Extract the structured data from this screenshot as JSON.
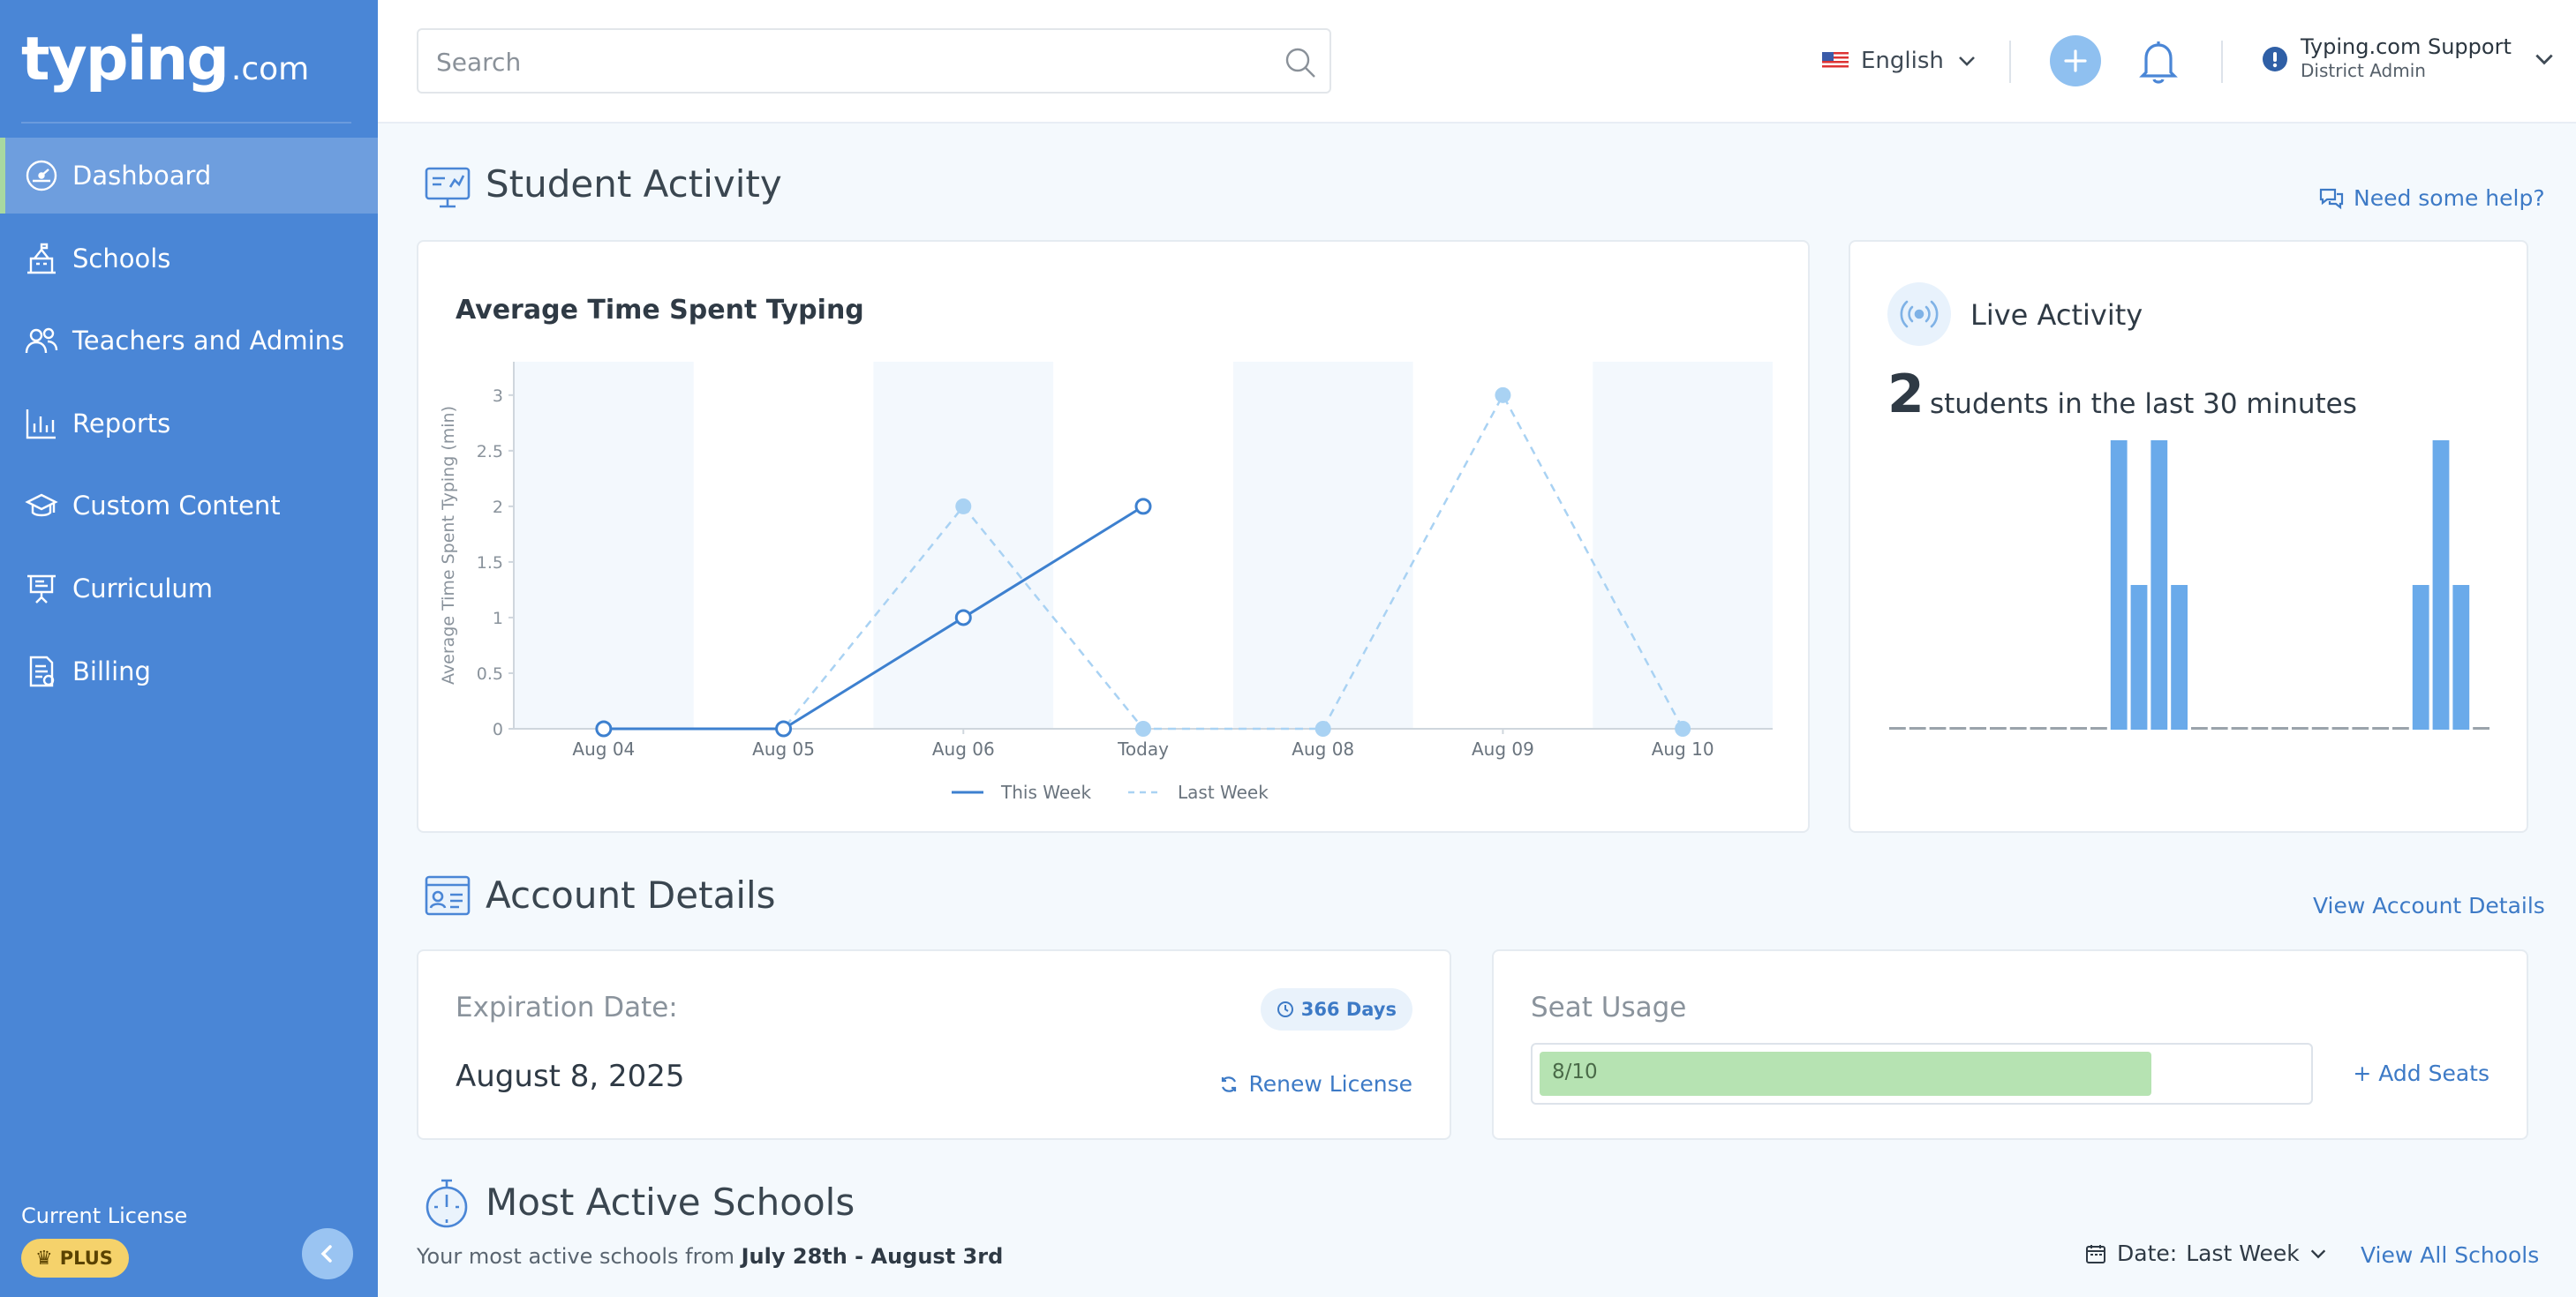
{
  "sidebar": {
    "logo_word": "typing",
    "logo_suffix": ".com",
    "items": [
      {
        "label": "Dashboard",
        "icon": "speedometer-icon",
        "active": true
      },
      {
        "label": "Schools",
        "icon": "school-building-icon"
      },
      {
        "label": "Teachers and Admins",
        "icon": "users-icon"
      },
      {
        "label": "Reports",
        "icon": "bar-chart-icon"
      },
      {
        "label": "Custom Content",
        "icon": "custom-content-icon"
      },
      {
        "label": "Curriculum",
        "icon": "presentation-board-icon"
      },
      {
        "label": "Billing",
        "icon": "invoice-icon"
      }
    ],
    "license_label": "Current License",
    "license_badge": "PLUS"
  },
  "header": {
    "search_placeholder": "Search",
    "language": "English",
    "user_name": "Typing.com Support",
    "user_role": "District Admin"
  },
  "student_activity": {
    "title": "Student Activity",
    "help_link": "Need some help?"
  },
  "chart_card": {
    "title": "Average Time Spent Typing"
  },
  "chart_data": {
    "type": "line",
    "title": "Average Time Spent Typing",
    "xlabel": "",
    "ylabel": "Average Time Spent Typing (min)",
    "categories": [
      "Aug 04",
      "Aug 05",
      "Aug 06",
      "Today",
      "Aug 08",
      "Aug 09",
      "Aug 10"
    ],
    "yticks": [
      "0",
      "0.5",
      "1",
      "1.5",
      "2",
      "2.5",
      "3"
    ],
    "ylim": [
      0,
      3.3
    ],
    "series": [
      {
        "name": "This Week",
        "values": [
          0,
          0,
          1,
          2,
          null,
          null,
          null
        ],
        "color": "#3d80cf",
        "style": "solid"
      },
      {
        "name": "Last Week",
        "values": [
          0,
          0,
          2,
          0,
          0,
          3,
          0
        ],
        "color": "#a9d2f3",
        "style": "dashed"
      }
    ],
    "legend": "bottom",
    "grid": "alternating-column-bands"
  },
  "live_activity": {
    "title": "Live Activity",
    "count": "2",
    "text": "students in the last 30 minutes",
    "bars": [
      0,
      0,
      0,
      0,
      0,
      0,
      0,
      0,
      0,
      0,
      0,
      2,
      1,
      2,
      1,
      0,
      0,
      0,
      0,
      0,
      0,
      0,
      0,
      0,
      0,
      0,
      1,
      2,
      1,
      0
    ],
    "bar_color": "#6aaaea"
  },
  "account_details": {
    "title": "Account Details",
    "view_link": "View Account Details",
    "expiration_label": "Expiration Date:",
    "expiration_date": "August 8, 2025",
    "days_badge": "366 Days",
    "renew_link": "Renew License",
    "seat_label": "Seat Usage",
    "seat_text": "8/10",
    "seat_used": 8,
    "seat_total": 10,
    "add_seats_link": "+ Add Seats"
  },
  "most_active": {
    "title": "Most Active Schools",
    "subtitle_prefix": "Your most active schools from",
    "subtitle_range": "July 28th - August 3rd",
    "date_label": "Date:",
    "date_value": "Last Week",
    "view_all_link": "View All Schools"
  },
  "colors": {
    "sidebar": "#4a86d6",
    "accent": "#3d7ac6",
    "seat_fill": "#b6e3b2",
    "badge": "#f5d26b"
  }
}
